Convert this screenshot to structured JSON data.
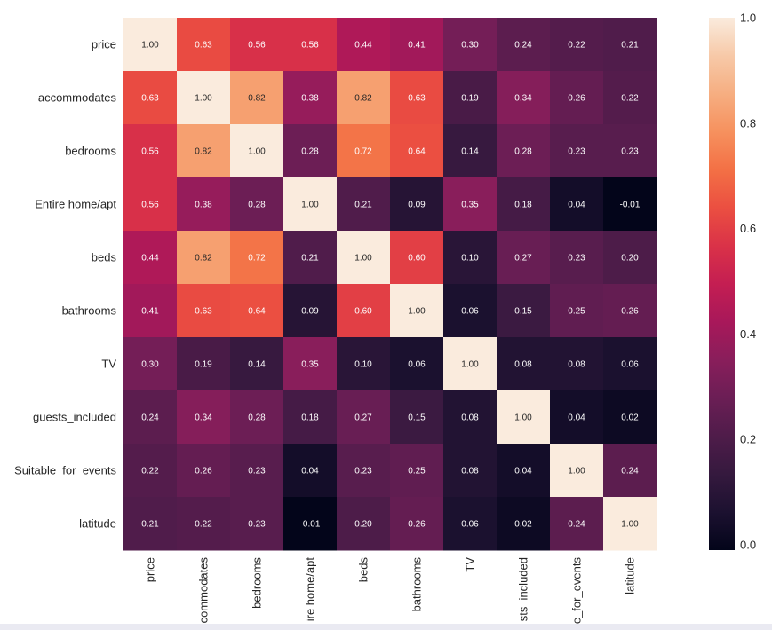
{
  "chart_data": {
    "type": "heatmap",
    "labels": [
      "price",
      "accommodates",
      "bedrooms",
      "Entire home/apt",
      "beds",
      "bathrooms",
      "TV",
      "guests_included",
      "Suitable_for_events",
      "latitude"
    ],
    "x_tick_labels_shown": [
      "price",
      "commodates",
      "bedrooms",
      "ire home/apt",
      "beds",
      "bathrooms",
      "TV",
      "sts_included",
      "e_for_events",
      "latitude"
    ],
    "values": [
      [
        1.0,
        0.63,
        0.56,
        0.56,
        0.44,
        0.41,
        0.3,
        0.24,
        0.22,
        0.21
      ],
      [
        0.63,
        1.0,
        0.82,
        0.38,
        0.82,
        0.63,
        0.19,
        0.34,
        0.26,
        0.22
      ],
      [
        0.56,
        0.82,
        1.0,
        0.28,
        0.72,
        0.64,
        0.14,
        0.28,
        0.23,
        0.23
      ],
      [
        0.56,
        0.38,
        0.28,
        1.0,
        0.21,
        0.09,
        0.35,
        0.18,
        0.04,
        -0.01
      ],
      [
        0.44,
        0.82,
        0.72,
        0.21,
        1.0,
        0.6,
        0.1,
        0.27,
        0.23,
        0.2
      ],
      [
        0.41,
        0.63,
        0.64,
        0.09,
        0.6,
        1.0,
        0.06,
        0.15,
        0.25,
        0.26
      ],
      [
        0.3,
        0.19,
        0.14,
        0.35,
        0.1,
        0.06,
        1.0,
        0.08,
        0.08,
        0.06
      ],
      [
        0.24,
        0.34,
        0.28,
        0.18,
        0.27,
        0.15,
        0.08,
        1.0,
        0.04,
        0.02
      ],
      [
        0.22,
        0.26,
        0.23,
        0.04,
        0.23,
        0.25,
        0.08,
        0.04,
        1.0,
        0.24
      ],
      [
        0.21,
        0.22,
        0.23,
        -0.01,
        0.2,
        0.26,
        0.06,
        0.02,
        0.24,
        1.0
      ]
    ],
    "annot_format": "0.00",
    "colormap": "rocket",
    "vmin": -0.01,
    "vmax": 1.0,
    "colorbar": {
      "ticks": [
        0.0,
        0.2,
        0.4,
        0.6,
        0.8,
        1.0
      ],
      "tick_labels": [
        "0.0",
        "0.2",
        "0.4",
        "0.6",
        "0.8",
        "1.0"
      ],
      "placement": "right"
    },
    "title": "",
    "xlabel": "",
    "ylabel": ""
  },
  "colors": {
    "annot_light": "#ffffff",
    "annot_dark": "#262626",
    "tick_text": "#262626",
    "colormap_stops": [
      "#03051a",
      "#1c1130",
      "#35193e",
      "#4f1c4a",
      "#6b1e55",
      "#891e5b",
      "#a8185a",
      "#c41e52",
      "#da3248",
      "#eb4f41",
      "#f37045",
      "#f6915e",
      "#f6ae81",
      "#f7c9a8",
      "#faebdd"
    ]
  }
}
